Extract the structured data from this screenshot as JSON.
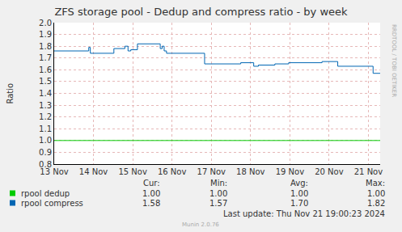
{
  "chart_data": {
    "type": "line",
    "title": "ZFS storage pool - Dedup and compress ratio - by week",
    "y_label": "Ratio",
    "side_text": "RRDTOOL / TOBI OETIKER",
    "footer": "Last update: Thu Nov 21 19:00:23 2024",
    "credit": "Munin 2.0.76",
    "xlim": [
      13.5,
      21.8
    ],
    "xticks": [
      {
        "value": 13.5,
        "label": "13 Nov"
      },
      {
        "value": 14.5,
        "label": "14 Nov"
      },
      {
        "value": 15.5,
        "label": "15 Nov"
      },
      {
        "value": 16.5,
        "label": "16 Nov"
      },
      {
        "value": 17.5,
        "label": "17 Nov"
      },
      {
        "value": 18.5,
        "label": "18 Nov"
      },
      {
        "value": 19.5,
        "label": "19 Nov"
      },
      {
        "value": 20.5,
        "label": "20 Nov"
      },
      {
        "value": 21.5,
        "label": "21 Nov"
      }
    ],
    "ylim": [
      0.8,
      2.0
    ],
    "yticks": [
      0.8,
      0.9,
      {
        "value": 1,
        "label": "1.0"
      },
      1.1,
      1.2,
      1.3,
      1.4,
      1.5,
      1.6,
      1.7,
      1.8,
      1.9,
      {
        "value": 2,
        "label": "2.0"
      }
    ],
    "grid": true,
    "stats_headers": [
      "Cur:",
      "Min:",
      "Avg:",
      "Max:"
    ],
    "series": [
      {
        "name": "rpool dedup",
        "color": "#00cc00",
        "line_style": "step",
        "x": [
          13.5,
          21.8
        ],
        "values": [
          1.0,
          1.0
        ],
        "stats": [
          {
            "value": 1,
            "label": "1.00"
          },
          {
            "value": 1,
            "label": "1.00"
          },
          {
            "value": 1,
            "label": "1.00"
          },
          {
            "value": 1,
            "label": "1.00"
          }
        ]
      },
      {
        "name": "rpool compress",
        "color": "#0066b3",
        "line_style": "step",
        "x": [
          13.5,
          14.38,
          14.42,
          15.02,
          15.3,
          15.38,
          15.45,
          15.62,
          16.2,
          16.25,
          16.3,
          16.36,
          17.33,
          18.25,
          18.58,
          18.7,
          19.12,
          19.47,
          20.32,
          20.72,
          21.62,
          21.8
        ],
        "values": [
          1.76,
          1.79,
          1.74,
          1.78,
          1.8,
          1.76,
          1.77,
          1.82,
          1.78,
          1.8,
          1.76,
          1.74,
          1.65,
          1.66,
          1.63,
          1.64,
          1.65,
          1.66,
          1.67,
          1.63,
          1.57,
          1.57
        ],
        "stats": [
          1.58,
          1.57,
          {
            "value": 1.7,
            "label": "1.70"
          },
          1.82
        ]
      }
    ]
  }
}
